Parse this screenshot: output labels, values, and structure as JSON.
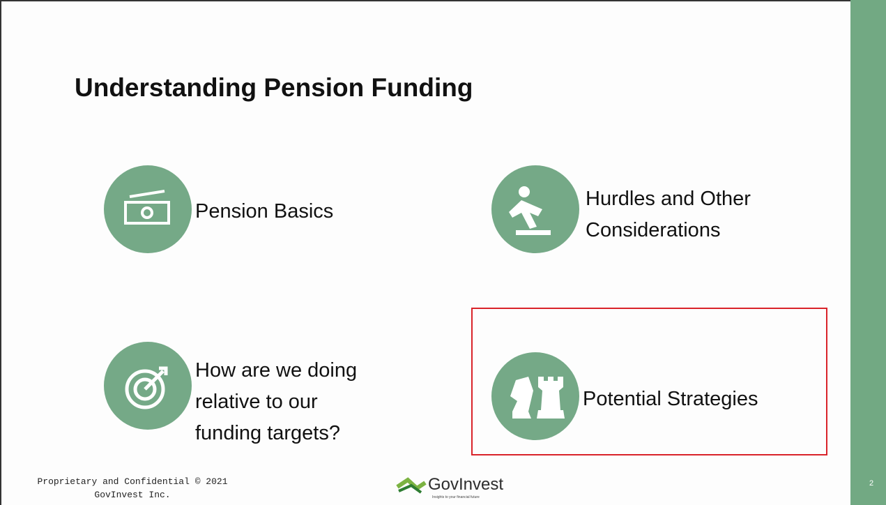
{
  "slide": {
    "title": "Understanding Pension Funding",
    "items": [
      {
        "lines": [
          "Pension Basics"
        ]
      },
      {
        "lines": [
          "Hurdles and Other",
          "Considerations"
        ]
      },
      {
        "lines": [
          "How are we doing",
          "relative to our",
          "funding targets?"
        ]
      },
      {
        "lines": [
          "Potential Strategies"
        ]
      }
    ],
    "footer": {
      "lines": [
        "Proprietary and Confidential © 2021",
        "GovInvest Inc."
      ]
    },
    "logo": {
      "name": "GovInvest",
      "tagline": "Insights to your financial future"
    },
    "page_number": "2"
  }
}
